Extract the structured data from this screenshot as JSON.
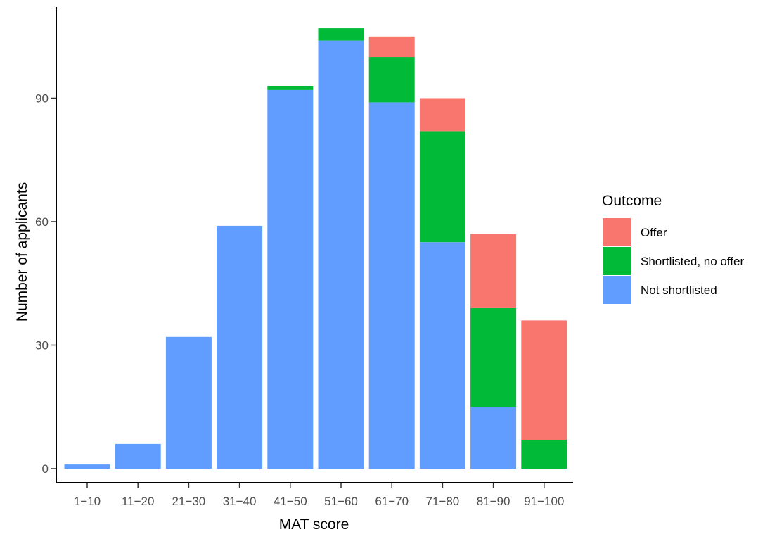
{
  "chart_data": {
    "type": "bar",
    "stacked": true,
    "title": "",
    "xlabel": "MAT score",
    "ylabel": "Number of applicants",
    "categories": [
      "1−10",
      "11−20",
      "21−30",
      "31−40",
      "41−50",
      "51−60",
      "61−70",
      "71−80",
      "81−90",
      "91−100"
    ],
    "yticks": [
      "0",
      "30",
      "60",
      "90"
    ],
    "ylim": [
      0,
      108
    ],
    "grid": false,
    "legend": {
      "title": "Outcome",
      "position": "right"
    },
    "series": [
      {
        "name": "Not shortlisted",
        "color": "#619CFF",
        "values": [
          1,
          6,
          32,
          59,
          92,
          104,
          89,
          55,
          15,
          0
        ]
      },
      {
        "name": "Shortlisted, no offer",
        "color": "#00BA38",
        "values": [
          0,
          0,
          0,
          0,
          1,
          3,
          11,
          27,
          24,
          7
        ]
      },
      {
        "name": "Offer",
        "color": "#F8766D",
        "values": [
          0,
          0,
          0,
          0,
          0,
          0,
          5,
          8,
          18,
          29
        ]
      }
    ],
    "legend_order": [
      "Offer",
      "Shortlisted, no offer",
      "Not shortlisted"
    ]
  }
}
